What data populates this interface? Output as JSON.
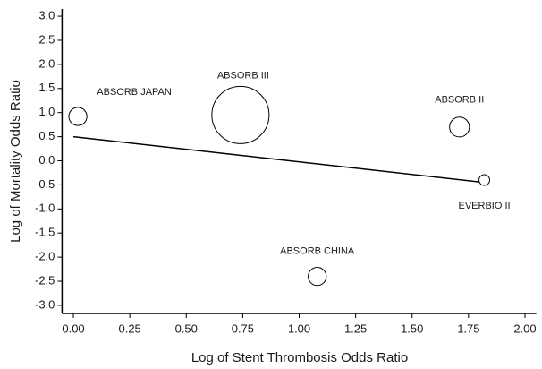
{
  "chart_data": {
    "type": "bubble",
    "x_label": "Log of Stent Thrombosis Odds Ratio",
    "y_label": "Log of Mortality Odds Ratio",
    "categories": [
      "ABSORB JAPAN",
      "ABSORB III",
      "ABSORB II",
      "EVERBIO II",
      "ABSORB CHINA"
    ],
    "x": [
      0.02,
      0.74,
      1.71,
      1.82,
      1.08
    ],
    "values": [
      0.92,
      0.95,
      0.7,
      -0.4,
      -2.4
    ],
    "sizes": [
      10,
      100,
      12,
      3.5,
      10
    ],
    "color": "#000000",
    "trend_line": {
      "x": [
        0,
        1.82
      ],
      "values": [
        0.5,
        -0.45
      ],
      "color": "#000000"
    },
    "xlim": [
      -0.05,
      2.05
    ],
    "ylim": [
      -3.15,
      3.15
    ],
    "xticks": [
      {
        "value": 0,
        "label": "0.00"
      },
      0.25,
      {
        "value": 0.5,
        "label": "0.50"
      },
      0.75,
      {
        "value": 1,
        "label": "1.00"
      },
      1.25,
      {
        "value": 1.5,
        "label": "1.50"
      },
      1.75,
      {
        "value": 2,
        "label": "2.00"
      }
    ],
    "yticks": [
      {
        "value": 3,
        "label": "3.0"
      },
      2.5,
      {
        "value": 2,
        "label": "2.0"
      },
      1.5,
      {
        "value": 1,
        "label": "1.0"
      },
      0.5,
      {
        "value": 0,
        "label": "0.0"
      },
      -0.5,
      {
        "value": -1,
        "label": "-1.0"
      },
      -1.5,
      {
        "value": -2,
        "label": "-2.0"
      },
      -2.5,
      {
        "value": -3,
        "label": "-3.0"
      }
    ],
    "grid": false
  }
}
